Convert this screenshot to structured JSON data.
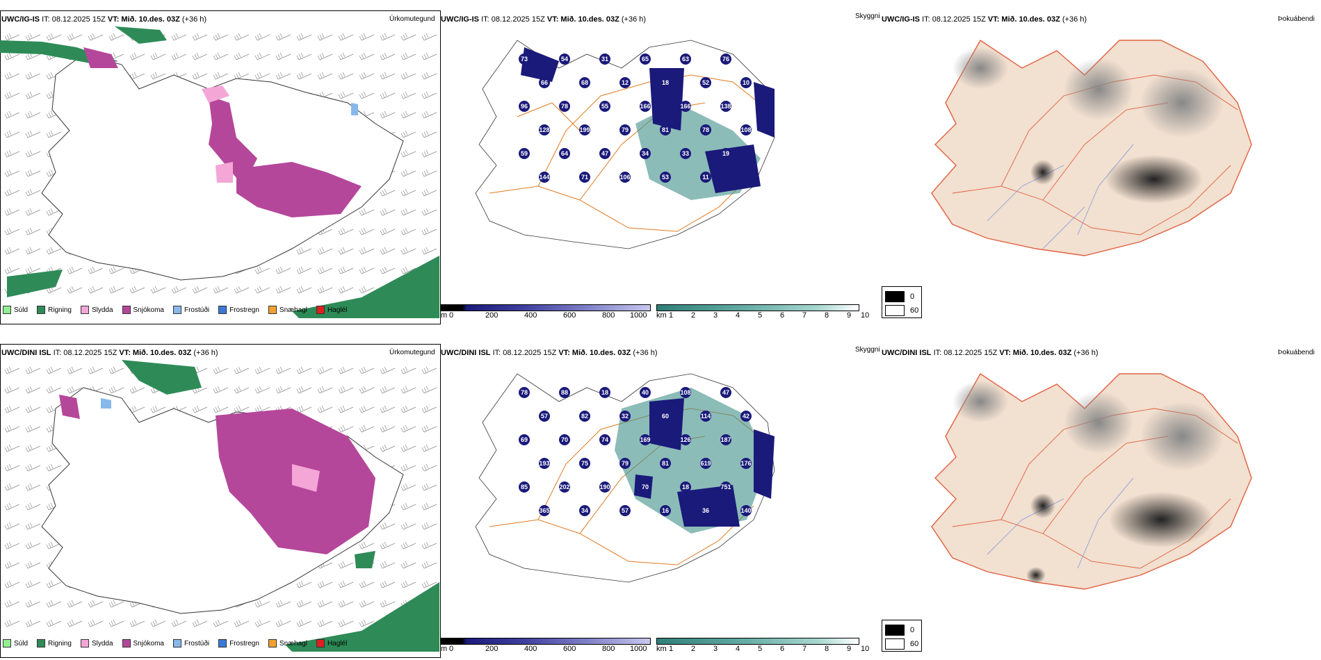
{
  "rows": [
    {
      "model": "UWC/IG-IS",
      "it": "IT: 08.12.2025 15Z",
      "vt_label": "VT:",
      "vt_value": "Mið. 10.des. 03Z",
      "lead": "(+36 h)",
      "precip_title": "Úrkomutegund",
      "vis_title": "Skyggni",
      "fog_title": "Þokuábendi",
      "vis_numbers": [
        "73",
        "54",
        "31",
        "65",
        "63",
        "76",
        "66",
        "68",
        "12",
        "18",
        "52",
        "10",
        "96",
        "78",
        "55",
        "166",
        "166",
        "138",
        "128",
        "199",
        "79",
        "81",
        "78",
        "108",
        "59",
        "64",
        "47",
        "34",
        "33",
        "19",
        "144",
        "71",
        "106",
        "53",
        "11"
      ]
    },
    {
      "model": "UWC/DINI ISL",
      "it": "IT: 08.12.2025 15Z",
      "vt_label": "VT:",
      "vt_value": "Mið. 10.des. 03Z",
      "lead": "(+36 h)",
      "precip_title": "Úrkomutegund",
      "vis_title": "Skyggni",
      "fog_title": "Þokuábendi",
      "vis_numbers": [
        "78",
        "88",
        "18",
        "40",
        "108",
        "47",
        "57",
        "82",
        "32",
        "60",
        "114",
        "42",
        "69",
        "70",
        "74",
        "169",
        "126",
        "187",
        "193",
        "75",
        "79",
        "81",
        "619",
        "176",
        "85",
        "202",
        "190",
        "70",
        "18",
        "751",
        "365",
        "34",
        "57",
        "16",
        "36",
        "140"
      ]
    }
  ],
  "precip_legend": [
    {
      "label": "Súld",
      "color": "#90ee90"
    },
    {
      "label": "Rigning",
      "color": "#2e8b57"
    },
    {
      "label": "Slydda",
      "color": "#f4a6d7"
    },
    {
      "label": "Snjókoma",
      "color": "#b5479b"
    },
    {
      "label": "Frostúði",
      "color": "#87b8ea"
    },
    {
      "label": "Frostregn",
      "color": "#3c78d8"
    },
    {
      "label": "Snæhagl",
      "color": "#f0a030"
    },
    {
      "label": "Haglél",
      "color": "#e02020"
    }
  ],
  "ceiling_bar": {
    "unit": "m",
    "ticks": [
      "0",
      "200",
      "400",
      "600",
      "800",
      "1000"
    ]
  },
  "vis_bar": {
    "unit": "km",
    "ticks": [
      "1",
      "2",
      "3",
      "4",
      "5",
      "6",
      "7",
      "8",
      "9",
      "10"
    ]
  },
  "fog_legend": {
    "v0": "0",
    "v1": "60"
  },
  "colors": {
    "rain": "#2e8b57",
    "snow": "#b5479b",
    "sleet": "#f4a6d7",
    "frz": "#87b8ea",
    "ceiling_dark": "#1a1a7a",
    "vis_teal": "#3f8f88",
    "road": "#e07a20",
    "land": "#f2e0d0"
  }
}
